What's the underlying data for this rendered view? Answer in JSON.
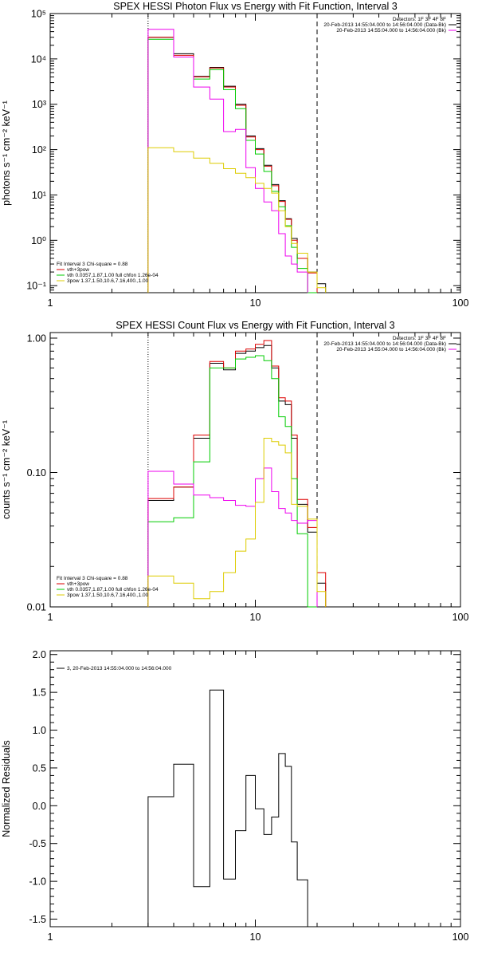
{
  "chart_data": [
    {
      "type": "line",
      "title": "SPEX HESSI Photon Flux vs Energy with Fit Function, Interval 3",
      "ylabel": "photons s⁻¹ cm⁻² keV⁻¹",
      "xscale": "log",
      "yscale": "log",
      "xlim": [
        1,
        100
      ],
      "ylim": [
        0.07,
        100000
      ],
      "xticks": [
        {
          "v": 1,
          "l": "1"
        },
        {
          "v": 10,
          "l": "10"
        },
        {
          "v": 100,
          "l": "100"
        }
      ],
      "yticks": [
        {
          "v": 0.1,
          "l": "10⁻¹"
        },
        {
          "v": 1,
          "l": "10⁰"
        },
        {
          "v": 10,
          "l": "10¹"
        },
        {
          "v": 100,
          "l": "10²"
        },
        {
          "v": 1000,
          "l": "10³"
        },
        {
          "v": 10000,
          "l": "10⁴"
        },
        {
          "v": 100000,
          "l": "10⁵"
        }
      ],
      "vlines": [
        {
          "x": 3.0,
          "style": "dotted",
          "color": "#000000"
        },
        {
          "x": 20.0,
          "style": "dashed",
          "color": "#000000"
        }
      ],
      "legend_top_right": [
        "Detectors: 1F 3F 4F 8F",
        "20-Feb-2013 14:55:04.000 to 14:56:04.000 (Data-Bk)",
        "20-Feb-2013 14:55:04.000 to 14:56:04.000 (Bk)"
      ],
      "legend_top_right_colors": [
        "",
        "#000000",
        "#ee00ee"
      ],
      "legend_bottom_left": [
        "Fit Interval 3   Chi-square = 0.88",
        "vth+3pow",
        "vth 0.0357,1.87,1.00  full chfon 1.26e-04",
        "3pow 1.37,1.50,10.6,7.16,400.,1.00"
      ],
      "legend_bottom_left_colors": [
        "",
        "#dd0000",
        "#00cc00",
        "#ddcc00"
      ],
      "edges": [
        3.0,
        4.0,
        5.0,
        6.0,
        7.0,
        8.0,
        9.0,
        10.0,
        11.0,
        12.0,
        13.0,
        14.0,
        15.0,
        16.0,
        18.0,
        20.0,
        22.0
      ],
      "series": [
        {
          "color": "#000000",
          "values": [
            30000,
            13000,
            4100,
            6500,
            2500,
            1000,
            200,
            105,
            45,
            17,
            7.5,
            3.0,
            1.1,
            0.4,
            0.2,
            0.11
          ]
        },
        {
          "color": "#dd0000",
          "values": [
            30000,
            12000,
            4000,
            6300,
            2400,
            950,
            190,
            100,
            43,
            16,
            7.2,
            2.9,
            1.0,
            0.4,
            0.19,
            null
          ]
        },
        {
          "color": "#00cc00",
          "values": [
            27000,
            11000,
            3600,
            5800,
            2100,
            800,
            160,
            80,
            33,
            12,
            5.5,
            2.1,
            0.7,
            0.24,
            0.07,
            null
          ]
        },
        {
          "color": "#ee00ee",
          "values": [
            45000,
            11000,
            2400,
            1300,
            250,
            280,
            40,
            14,
            7,
            4.5,
            1.4,
            0.45,
            0.3,
            0.2,
            null,
            null
          ]
        },
        {
          "color": "#ddcc00",
          "values": [
            110,
            90,
            65,
            50,
            38,
            30,
            24,
            18,
            14,
            11,
            4.5,
            2.0,
            0.85,
            0.52,
            0.2,
            0.09
          ]
        }
      ]
    },
    {
      "type": "line",
      "title": "SPEX HESSI Count Flux vs Energy with Fit Function, Interval 3",
      "ylabel": "counts s⁻¹ cm⁻² keV⁻¹",
      "xscale": "log",
      "yscale": "log",
      "xlim": [
        1,
        100
      ],
      "ylim": [
        0.01,
        1.1
      ],
      "xticks": [
        {
          "v": 1,
          "l": "1"
        },
        {
          "v": 10,
          "l": "10"
        },
        {
          "v": 100,
          "l": "100"
        }
      ],
      "yticks": [
        {
          "v": 0.01,
          "l": "0.01"
        },
        {
          "v": 0.1,
          "l": "0.10"
        },
        {
          "v": 1,
          "l": "1.00"
        }
      ],
      "vlines": [
        {
          "x": 3.0,
          "style": "dotted",
          "color": "#000000"
        },
        {
          "x": 20.0,
          "style": "dashed",
          "color": "#000000"
        }
      ],
      "legend_top_right": [
        "Detectors: 1F 3F 4F 8F",
        "20-Feb-2013 14:55:04.000 to 14:56:04.000 (Data-Bk)",
        "20-Feb-2013 14:55:04.000 to 14:56:04.000 (Bk)"
      ],
      "legend_top_right_colors": [
        "",
        "#000000",
        "#ee00ee"
      ],
      "legend_bottom_left": [
        "Fit Interval 3   Chi-square = 0.88",
        "vth+3pow",
        "vth 0.0357,1.87,1.00  full chfon 1.26e-04",
        "3pow 1.37,1.50,10.6,7.16,400.,1.00"
      ],
      "legend_bottom_left_colors": [
        "",
        "#dd0000",
        "#00cc00",
        "#ddcc00"
      ],
      "edges": [
        3.0,
        4.0,
        5.0,
        6.0,
        7.0,
        8.0,
        9.0,
        10.0,
        11.0,
        12.0,
        13.0,
        14.0,
        15.0,
        16.0,
        18.0,
        20.0,
        22.0
      ],
      "series": [
        {
          "color": "#000000",
          "values": [
            0.062,
            0.078,
            0.18,
            0.65,
            0.58,
            0.77,
            0.8,
            0.85,
            0.88,
            0.6,
            0.34,
            0.32,
            0.18,
            0.058,
            0.036,
            0.015
          ]
        },
        {
          "color": "#dd0000",
          "values": [
            0.064,
            0.078,
            0.19,
            0.67,
            0.6,
            0.8,
            0.83,
            0.9,
            0.96,
            0.62,
            0.36,
            0.34,
            0.19,
            0.063,
            0.039,
            0.018
          ]
        },
        {
          "color": "#00cc00",
          "values": [
            0.043,
            0.046,
            0.12,
            0.6,
            0.6,
            0.7,
            0.72,
            0.74,
            0.68,
            0.5,
            0.26,
            0.22,
            0.09,
            0.035,
            0.01,
            null
          ]
        },
        {
          "color": "#ee00ee",
          "values": [
            0.102,
            0.082,
            0.068,
            0.065,
            0.062,
            0.057,
            0.056,
            0.09,
            0.108,
            0.072,
            0.054,
            0.05,
            0.044,
            0.042,
            0.044,
            null
          ]
        },
        {
          "color": "#ddcc00",
          "values": [
            0.017,
            0.015,
            0.0115,
            0.013,
            0.018,
            0.026,
            0.032,
            0.06,
            0.18,
            0.17,
            0.16,
            0.14,
            0.058,
            0.056,
            0.045,
            0.013
          ]
        }
      ]
    },
    {
      "type": "line",
      "title": "",
      "ylabel": "Normalized Residuals",
      "xscale": "log",
      "yscale": "linear",
      "xlim": [
        1,
        100
      ],
      "ylim": [
        -1.6,
        2.05
      ],
      "xticks": [
        {
          "v": 1,
          "l": "1"
        },
        {
          "v": 10,
          "l": "10"
        },
        {
          "v": 100,
          "l": "100"
        }
      ],
      "yticks": [
        {
          "v": -1.5,
          "l": "-1.5"
        },
        {
          "v": -1.0,
          "l": "-1.0"
        },
        {
          "v": -0.5,
          "l": "-0.5"
        },
        {
          "v": 0.0,
          "l": "0.0"
        },
        {
          "v": 0.5,
          "l": "0.5"
        },
        {
          "v": 1.0,
          "l": "1.0"
        },
        {
          "v": 1.5,
          "l": "1.5"
        },
        {
          "v": 2.0,
          "l": "2.0"
        }
      ],
      "vlines": [],
      "legend_top_left": [
        "3, 20-Feb-2013 14:55:04.000 to 14:56:04.000"
      ],
      "legend_top_left_colors": [
        "#000000"
      ],
      "edges": [
        3.0,
        4.0,
        5.0,
        6.0,
        7.0,
        8.0,
        9.0,
        10.0,
        11.0,
        12.0,
        13.0,
        14.0,
        15.0,
        16.0,
        18.0,
        20.0
      ],
      "series": [
        {
          "color": "#000000",
          "values": [
            0.12,
            0.55,
            -1.07,
            1.53,
            -0.97,
            -0.33,
            0.4,
            -0.04,
            -0.38,
            -0.15,
            0.69,
            0.52,
            -0.48,
            -0.98,
            -1.6
          ]
        }
      ]
    }
  ]
}
